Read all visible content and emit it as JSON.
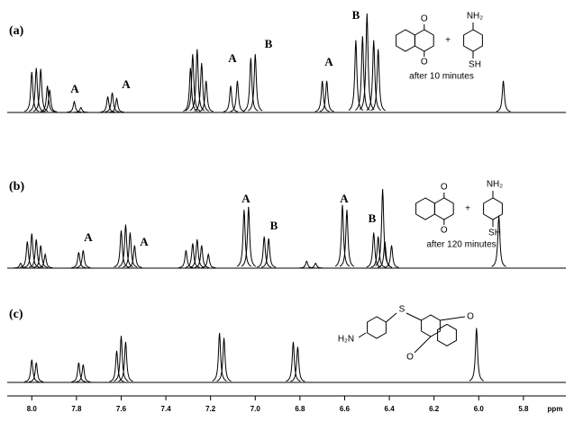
{
  "chart_data": [
    {
      "type": "spectrum",
      "panel_label": "(a)",
      "x": [
        8.0,
        7.98,
        7.96,
        7.93,
        7.92,
        7.81,
        7.78,
        7.66,
        7.64,
        7.62,
        7.29,
        7.28,
        7.26,
        7.24,
        7.22,
        7.11,
        7.08,
        7.02,
        7.0,
        6.7,
        6.68,
        6.55,
        6.52,
        6.5,
        6.47,
        6.45,
        5.89
      ],
      "values": [
        41,
        45,
        44,
        27,
        23,
        11,
        5,
        16,
        20,
        14,
        45,
        59,
        64,
        50,
        32,
        27,
        32,
        55,
        59,
        32,
        32,
        73,
        77,
        100,
        73,
        64,
        32
      ],
      "xlim": [
        8.11,
        5.61
      ],
      "annotations": [
        "A",
        "A",
        "A",
        "B",
        "A",
        "B"
      ],
      "structure_labels": [
        "O",
        "O",
        "+",
        "NH₂",
        "SH"
      ],
      "note": "after 10 minutes"
    },
    {
      "type": "spectrum",
      "panel_label": "(b)",
      "x": [
        8.05,
        8.02,
        8.0,
        7.98,
        7.96,
        7.94,
        7.79,
        7.77,
        7.6,
        7.58,
        7.56,
        7.54,
        7.31,
        7.28,
        7.26,
        7.24,
        7.21,
        7.05,
        7.03,
        6.96,
        6.94,
        6.77,
        6.73,
        6.61,
        6.59,
        6.47,
        6.45,
        6.43,
        6.42,
        6.39,
        5.91
      ],
      "values": [
        5,
        27,
        35,
        29,
        23,
        14,
        16,
        18,
        38,
        44,
        36,
        23,
        18,
        25,
        29,
        23,
        14,
        59,
        62,
        32,
        30,
        7,
        5,
        64,
        59,
        36,
        32,
        80,
        27,
        23,
        53
      ],
      "xlim": [
        8.11,
        5.61
      ],
      "annotations": [
        "A",
        "A",
        "A",
        "B",
        "A",
        "B"
      ],
      "structure_labels": [
        "O",
        "O",
        "+",
        "NH₂",
        "SH"
      ],
      "note": "after 120 minutes"
    },
    {
      "type": "spectrum",
      "panel_label": "(c)",
      "x": [
        8.0,
        7.98,
        7.79,
        7.77,
        7.62,
        7.6,
        7.58,
        7.16,
        7.14,
        6.83,
        6.81,
        6.01
      ],
      "values": [
        23,
        20,
        20,
        18,
        32,
        47,
        41,
        50,
        45,
        41,
        36,
        55
      ],
      "xlim": [
        8.11,
        5.61
      ],
      "structure_labels": [
        "S",
        "O",
        "H₂N",
        "O"
      ],
      "xlabel": "ppm",
      "xticks": [
        {
          "value": 8.0,
          "label": "8.0"
        },
        7.8,
        7.6,
        7.4,
        7.2,
        {
          "value": 7.0,
          "label": "7.0"
        },
        6.8,
        6.6,
        6.4,
        6.2,
        {
          "value": 6.0,
          "label": "6.0"
        },
        5.8
      ]
    }
  ]
}
